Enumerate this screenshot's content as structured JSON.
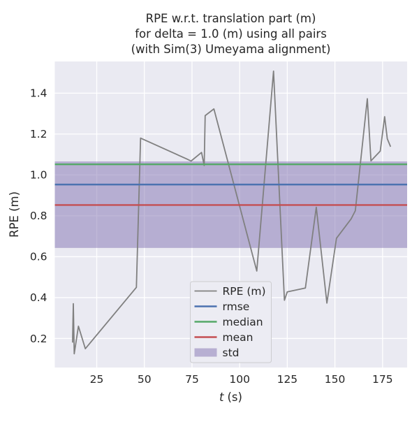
{
  "figure": {
    "background": "#ffffff",
    "axes_background": "#eaeaf2",
    "grid_color": "#ffffff",
    "text_color": "#262626",
    "legend_background": "#ececf3",
    "legend_border": "#cccccf"
  },
  "chart_data": {
    "type": "line",
    "title_lines": [
      "RPE w.r.t. translation part (m)",
      "for delta = 1.0 (m) using all pairs",
      "(with Sim(3) Umeyama alignment)"
    ],
    "xlabel": "t (s)",
    "xlabel_var": "t",
    "xlabel_unit": "(s)",
    "ylabel": "RPE (m)",
    "xlim": [
      3.0,
      187.9
    ],
    "ylim": [
      0.058,
      1.555
    ],
    "x_ticks": [
      25,
      50,
      75,
      100,
      125,
      150,
      175
    ],
    "x_tick_labels": [
      "25",
      "50",
      "75",
      "100",
      "125",
      "150",
      "175"
    ],
    "y_ticks": [
      0.2,
      0.4,
      0.6,
      0.8,
      1.0,
      1.2,
      1.4
    ],
    "y_tick_labels": [
      "0.2",
      "0.4",
      "0.6",
      "0.8",
      "1.0",
      "1.2",
      "1.4"
    ],
    "grid": true,
    "series": [
      {
        "name": "RPE (m)",
        "kind": "line",
        "color": "#808080",
        "x": [
          12.3,
          12.7,
          13.2,
          15.4,
          19.0,
          45.8,
          48.0,
          72.3,
          74.5,
          80.0,
          81.4,
          81.9,
          86.5,
          109.0,
          117.8,
          123.5,
          125.0,
          134.5,
          140.2,
          145.8,
          150.8,
          158.5,
          160.7,
          167.0,
          168.9,
          173.8,
          176.1,
          177.5,
          179.2
        ],
        "y": [
          0.18,
          0.37,
          0.125,
          0.26,
          0.15,
          0.45,
          1.18,
          1.078,
          1.068,
          1.11,
          1.046,
          1.29,
          1.323,
          0.53,
          1.508,
          0.387,
          0.428,
          0.447,
          0.842,
          0.373,
          0.69,
          0.785,
          0.825,
          1.373,
          1.069,
          1.117,
          1.285,
          1.177,
          1.138
        ]
      },
      {
        "name": "rmse",
        "kind": "hline",
        "color": "#4c72b0",
        "value": 0.953
      },
      {
        "name": "median",
        "kind": "hline",
        "color": "#55a868",
        "value": 1.052
      },
      {
        "name": "mean",
        "kind": "hline",
        "color": "#c44e52",
        "value": 0.853
      },
      {
        "name": "std",
        "kind": "band",
        "color": "rgba(129,114,178,0.5)",
        "lo": 0.643,
        "hi": 1.066
      }
    ],
    "legend": {
      "position": "lower center",
      "entries": [
        {
          "label": "RPE (m)",
          "swatch": "line",
          "color": "#808080"
        },
        {
          "label": "rmse",
          "swatch": "line",
          "color": "#4c72b0"
        },
        {
          "label": "median",
          "swatch": "line",
          "color": "#55a868"
        },
        {
          "label": "mean",
          "swatch": "line",
          "color": "#c44e52"
        },
        {
          "label": "std",
          "swatch": "patch",
          "color": "rgba(129,114,178,0.5)"
        }
      ]
    }
  }
}
